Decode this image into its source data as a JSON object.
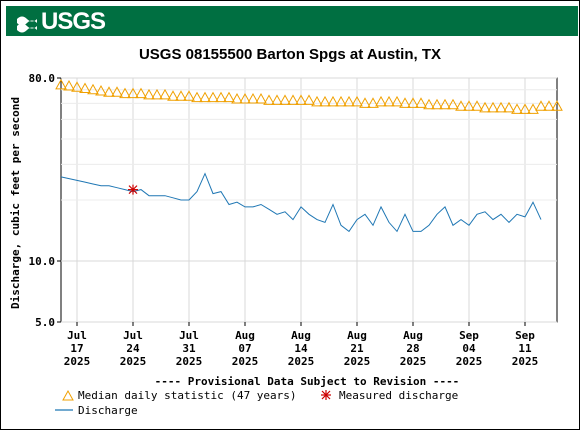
{
  "header": {
    "logo_text": "USGS"
  },
  "chart_data": {
    "type": "line",
    "title": "USGS 08155500 Barton Spgs at Austin, TX",
    "ylabel": "Discharge, cubic feet per second",
    "yscale": "log",
    "ylim": [
      5.0,
      80.0
    ],
    "y_ticks": [
      {
        "value": 80.0,
        "label": "80.0"
      },
      {
        "value": 10.0,
        "label": "10.0"
      },
      {
        "value": 5.0,
        "label": "5.0"
      }
    ],
    "xlim": [
      "2025-07-15",
      "2025-09-15"
    ],
    "x_ticks": [
      {
        "date": "2025-07-17",
        "line1": "Jul",
        "line2": "17",
        "line3": "2025"
      },
      {
        "date": "2025-07-24",
        "line1": "Jul",
        "line2": "24",
        "line3": "2025"
      },
      {
        "date": "2025-07-31",
        "line1": "Jul",
        "line2": "31",
        "line3": "2025"
      },
      {
        "date": "2025-08-07",
        "line1": "Aug",
        "line2": "07",
        "line3": "2025"
      },
      {
        "date": "2025-08-14",
        "line1": "Aug",
        "line2": "14",
        "line3": "2025"
      },
      {
        "date": "2025-08-21",
        "line1": "Aug",
        "line2": "21",
        "line3": "2025"
      },
      {
        "date": "2025-08-28",
        "line1": "Aug",
        "line2": "28",
        "line3": "2025"
      },
      {
        "date": "2025-09-04",
        "line1": "Sep",
        "line2": "04",
        "line3": "2025"
      },
      {
        "date": "2025-09-11",
        "line1": "Sep",
        "line2": "11",
        "line3": "2025"
      }
    ],
    "provisional_note": "---- Provisional Data Subject to Revision ----",
    "colors": {
      "median": "#f0a000",
      "discharge": "#1f77b4",
      "measured": "#cc0000"
    },
    "legend": [
      {
        "series": "median",
        "label": "Median daily statistic (47 years)"
      },
      {
        "series": "measured",
        "label": "Measured discharge"
      },
      {
        "series": "discharge",
        "label": "Discharge"
      }
    ],
    "series": [
      {
        "name": "Median daily statistic (47 years)",
        "key": "median",
        "style": "triangles",
        "x": [
          "2025-07-15",
          "2025-07-16",
          "2025-07-17",
          "2025-07-18",
          "2025-07-19",
          "2025-07-20",
          "2025-07-21",
          "2025-07-22",
          "2025-07-23",
          "2025-07-24",
          "2025-07-25",
          "2025-07-26",
          "2025-07-27",
          "2025-07-28",
          "2025-07-29",
          "2025-07-30",
          "2025-07-31",
          "2025-08-01",
          "2025-08-02",
          "2025-08-03",
          "2025-08-04",
          "2025-08-05",
          "2025-08-06",
          "2025-08-07",
          "2025-08-08",
          "2025-08-09",
          "2025-08-10",
          "2025-08-11",
          "2025-08-12",
          "2025-08-13",
          "2025-08-14",
          "2025-08-15",
          "2025-08-16",
          "2025-08-17",
          "2025-08-18",
          "2025-08-19",
          "2025-08-20",
          "2025-08-21",
          "2025-08-22",
          "2025-08-23",
          "2025-08-24",
          "2025-08-25",
          "2025-08-26",
          "2025-08-27",
          "2025-08-28",
          "2025-08-29",
          "2025-08-30",
          "2025-08-31",
          "2025-09-01",
          "2025-09-02",
          "2025-09-03",
          "2025-09-04",
          "2025-09-05",
          "2025-09-06",
          "2025-09-07",
          "2025-09-08",
          "2025-09-09",
          "2025-09-10",
          "2025-09-11",
          "2025-09-12",
          "2025-09-13",
          "2025-09-14",
          "2025-09-15"
        ],
        "values": [
          74,
          73,
          72,
          71,
          70,
          69,
          68,
          68,
          67,
          67,
          67,
          66,
          66,
          66,
          65,
          65,
          65,
          64,
          64,
          64,
          64,
          64,
          63,
          63,
          63,
          63,
          62,
          62,
          62,
          62,
          62,
          62,
          61,
          61,
          61,
          61,
          61,
          61,
          60,
          60,
          61,
          61,
          61,
          60,
          60,
          60,
          59,
          59,
          59,
          59,
          58,
          58,
          58,
          57,
          57,
          57,
          57,
          56,
          56,
          56,
          58,
          58,
          58
        ]
      },
      {
        "name": "Discharge",
        "key": "discharge",
        "style": "line",
        "x": [
          "2025-07-15",
          "2025-07-16",
          "2025-07-17",
          "2025-07-18",
          "2025-07-19",
          "2025-07-20",
          "2025-07-21",
          "2025-07-22",
          "2025-07-23",
          "2025-07-24",
          "2025-07-25",
          "2025-07-26",
          "2025-07-27",
          "2025-07-28",
          "2025-07-29",
          "2025-07-30",
          "2025-07-31",
          "2025-08-01",
          "2025-08-02",
          "2025-08-03",
          "2025-08-04",
          "2025-08-05",
          "2025-08-06",
          "2025-08-07",
          "2025-08-08",
          "2025-08-09",
          "2025-08-10",
          "2025-08-11",
          "2025-08-12",
          "2025-08-13",
          "2025-08-14",
          "2025-08-15",
          "2025-08-16",
          "2025-08-17",
          "2025-08-18",
          "2025-08-19",
          "2025-08-20",
          "2025-08-21",
          "2025-08-22",
          "2025-08-23",
          "2025-08-24",
          "2025-08-25",
          "2025-08-26",
          "2025-08-27",
          "2025-08-28",
          "2025-08-29",
          "2025-08-30",
          "2025-08-31",
          "2025-09-01",
          "2025-09-02",
          "2025-09-03",
          "2025-09-04",
          "2025-09-05",
          "2025-09-06",
          "2025-09-07",
          "2025-09-08",
          "2025-09-09",
          "2025-09-10",
          "2025-09-11",
          "2025-09-12",
          "2025-09-13"
        ],
        "values": [
          26,
          25.5,
          25,
          24.5,
          24,
          23.5,
          23.5,
          23,
          22.5,
          22,
          22.5,
          21,
          21,
          21,
          20.5,
          20,
          20,
          22,
          27,
          21.5,
          22,
          19,
          19.5,
          18.5,
          18.5,
          19,
          18,
          17,
          17.5,
          16,
          18.5,
          17,
          16,
          15.5,
          19,
          15,
          14,
          16,
          17,
          15,
          18.5,
          15.5,
          14,
          17,
          14,
          14,
          15,
          17,
          18.5,
          15,
          16,
          15,
          17,
          17.5,
          16,
          17,
          15.5,
          17,
          16.5,
          19.5,
          16
        ]
      },
      {
        "name": "Measured discharge",
        "key": "measured",
        "style": "asterisk",
        "x": [
          "2025-07-24"
        ],
        "values": [
          22.5
        ]
      }
    ]
  }
}
